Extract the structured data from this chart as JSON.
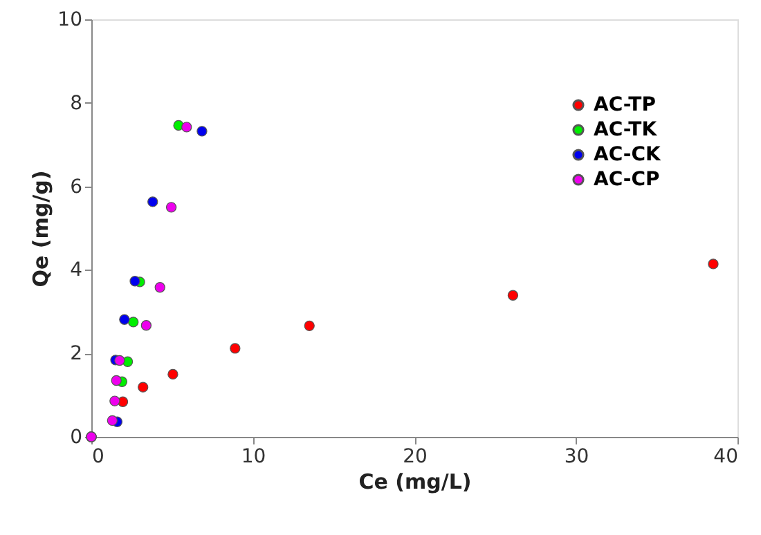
{
  "chart_data": {
    "type": "scatter",
    "xlabel": "Ce (mg/L)",
    "ylabel": "Qe (mg/g)",
    "xlim": [
      0,
      40
    ],
    "xticks": [
      0,
      10,
      20,
      30,
      40
    ],
    "ylim": [
      0,
      10
    ],
    "yticks": [
      0,
      2,
      4,
      6,
      8,
      10
    ],
    "grid": false,
    "legend": "top right",
    "marker": "circle",
    "series": [
      {
        "name": "AC-TP",
        "color": "#ff0000",
        "x": [
          0,
          1.95,
          3.2,
          5.05,
          8.9,
          13.5,
          26.1,
          38.5
        ],
        "values": [
          0,
          0.84,
          1.19,
          1.5,
          2.12,
          2.66,
          3.39,
          4.14
        ]
      },
      {
        "name": "AC-TK",
        "color": "#00ee00",
        "x": [
          0,
          1.6,
          1.9,
          2.25,
          2.6,
          3.0,
          5.4
        ],
        "values": [
          0,
          null,
          1.32,
          1.8,
          2.75,
          3.71,
          7.46
        ]
      },
      {
        "name": "AC-CK",
        "color": "#0000ee",
        "x": [
          0,
          1.6,
          1.5,
          2.05,
          2.7,
          3.8,
          6.85
        ],
        "values": [
          0,
          0.36,
          1.84,
          2.81,
          3.73,
          5.63,
          7.32
        ]
      },
      {
        "name": "AC-CP",
        "color": "#ee00ee",
        "x": [
          0,
          1.3,
          1.45,
          1.55,
          1.75,
          3.4,
          4.25,
          4.95,
          5.9
        ],
        "values": [
          0,
          0.39,
          0.86,
          1.35,
          1.83,
          2.67,
          3.58,
          5.5,
          7.42
        ]
      }
    ]
  }
}
